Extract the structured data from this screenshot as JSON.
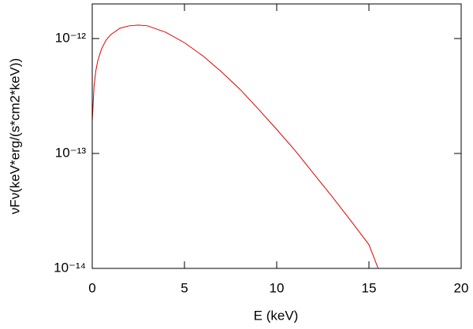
{
  "chart_data": {
    "type": "line",
    "xlabel": "E (keV)",
    "ylabel": "νFν(keV*erg/(s*cm2*keV))",
    "x": [
      0,
      0.1,
      0.2,
      0.3,
      0.5,
      0.75,
      1,
      1.5,
      2,
      2.5,
      3,
      4,
      5,
      6,
      7,
      8,
      9,
      10,
      11,
      12,
      13,
      14,
      15,
      15.5
    ],
    "series": [
      {
        "color": "#e00000",
        "values": [
          1.9e-13,
          3.9e-13,
          5.3e-13,
          6.4e-13,
          8.1e-13,
          9.7e-13,
          1.08e-12,
          1.23e-12,
          1.29e-12,
          1.31e-12,
          1.29e-12,
          1.13e-12,
          9.2e-13,
          7.06e-13,
          5.14e-13,
          3.63e-13,
          2.44e-13,
          1.62e-13,
          1.06e-13,
          6.68e-14,
          4.22e-14,
          2.62e-14,
          1.61e-14,
          1e-14
        ]
      }
    ],
    "xlim": [
      0,
      20
    ],
    "xticks": [
      0,
      5,
      10,
      15,
      20
    ],
    "ylim": [
      1e-14,
      2e-12
    ],
    "yscale": "log",
    "yticks": [
      {
        "value": 1e-14,
        "label": "10⁻¹⁴"
      },
      {
        "value": 1e-13,
        "label": "10⁻¹³"
      },
      {
        "value": 1e-12,
        "label": "10⁻¹²"
      }
    ]
  }
}
